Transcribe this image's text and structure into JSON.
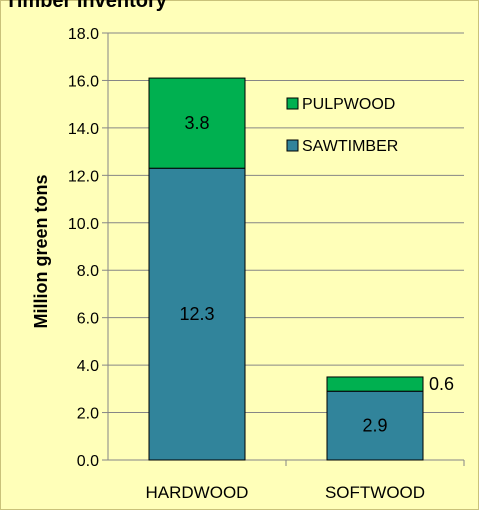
{
  "chart_data": {
    "type": "bar",
    "stacked": true,
    "title": "Timber Inventory",
    "ylabel": "Million green tons",
    "xlabel": "",
    "categories": [
      "HARDWOOD",
      "SOFTWOOD"
    ],
    "series": [
      {
        "name": "SAWTIMBER",
        "values": [
          12.3,
          2.9
        ],
        "color": "#31849b"
      },
      {
        "name": "PULPWOOD",
        "values": [
          3.8,
          0.6
        ],
        "color": "#00b050"
      }
    ],
    "data_labels": [
      [
        "12.3",
        "2.9"
      ],
      [
        "3.8",
        "0.6"
      ]
    ],
    "ylim": [
      0,
      18
    ],
    "yticks": [
      "0.0",
      "2.0",
      "4.0",
      "6.0",
      "8.0",
      "10.0",
      "12.0",
      "14.0",
      "16.0",
      "18.0"
    ],
    "grid": true,
    "legend_position": "top-right",
    "legend_order": [
      "PULPWOOD",
      "SAWTIMBER"
    ]
  }
}
